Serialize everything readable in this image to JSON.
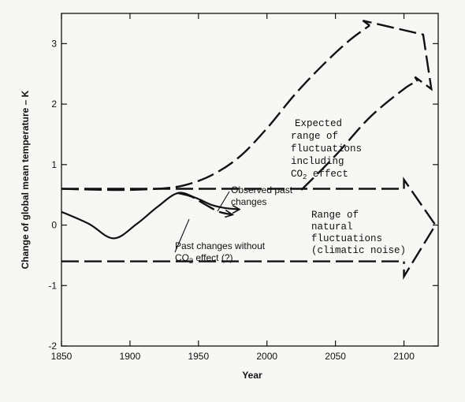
{
  "chart_data": {
    "type": "line",
    "title": "",
    "xlabel": "Year",
    "ylabel": "Change of global mean temperature – K",
    "xlim": [
      1850,
      2125
    ],
    "ylim": [
      -2,
      3.5
    ],
    "xticks": [
      "1850",
      "1900",
      "1950",
      "2000",
      "2050",
      "2100"
    ],
    "yticks": [
      "-2",
      "-1",
      "0",
      "1",
      "2",
      "3"
    ],
    "grid": false,
    "series": [
      {
        "name": "Observed past changes",
        "style": "solid",
        "x": [
          1850,
          1870,
          1888,
          1905,
          1920,
          1935,
          1948,
          1960,
          1970,
          1980
        ],
        "y": [
          0.22,
          0.02,
          -0.22,
          0.02,
          0.3,
          0.53,
          0.45,
          0.33,
          0.28,
          0.26
        ]
      },
      {
        "name": "Past changes without CO2 effect (?)",
        "style": "dashed",
        "x": [
          1935,
          1945,
          1955,
          1965,
          1975
        ],
        "y": [
          0.53,
          0.47,
          0.34,
          0.22,
          0.17
        ]
      },
      {
        "name": "Expected range of fluctuations including CO2 effect (upper bound)",
        "style": "dashed",
        "x": [
          1850,
          1890,
          1920,
          1940,
          1960,
          1980,
          2000,
          2020,
          2040,
          2060,
          2075
        ],
        "y": [
          0.6,
          0.58,
          0.6,
          0.66,
          0.83,
          1.13,
          1.6,
          2.15,
          2.63,
          3.05,
          3.3
        ]
      },
      {
        "name": "Expected range of fluctuations including CO2 effect (lower bound)",
        "style": "dashed",
        "x": [
          2025,
          2050,
          2075,
          2100,
          2110
        ],
        "y": [
          0.58,
          1.15,
          1.78,
          2.25,
          2.38
        ]
      },
      {
        "name": "Range of natural fluctuations (upper)",
        "style": "dashed",
        "x": [
          1850,
          2100
        ],
        "y": [
          0.6,
          0.6
        ]
      },
      {
        "name": "Range of natural fluctuations (lower)",
        "style": "dashed",
        "x": [
          1850,
          2100
        ],
        "y": [
          -0.6,
          -0.6
        ]
      }
    ],
    "annotations": {
      "observed": "Observed past",
      "observed2": "changes",
      "without1": "Past changes without",
      "without2": "CO",
      "without2_sub": "2",
      "without2_rest": " effect (?)",
      "expected1": "Expected",
      "expected2": "range of",
      "expected3": "fluctuations",
      "expected4": "including",
      "expected5": "CO",
      "expected5_sub": "2",
      "expected5_rest": " effect",
      "natural1": "Range of",
      "natural2": "natural",
      "natural3": "fluctuations",
      "natural4": "(climatic noise)"
    }
  }
}
